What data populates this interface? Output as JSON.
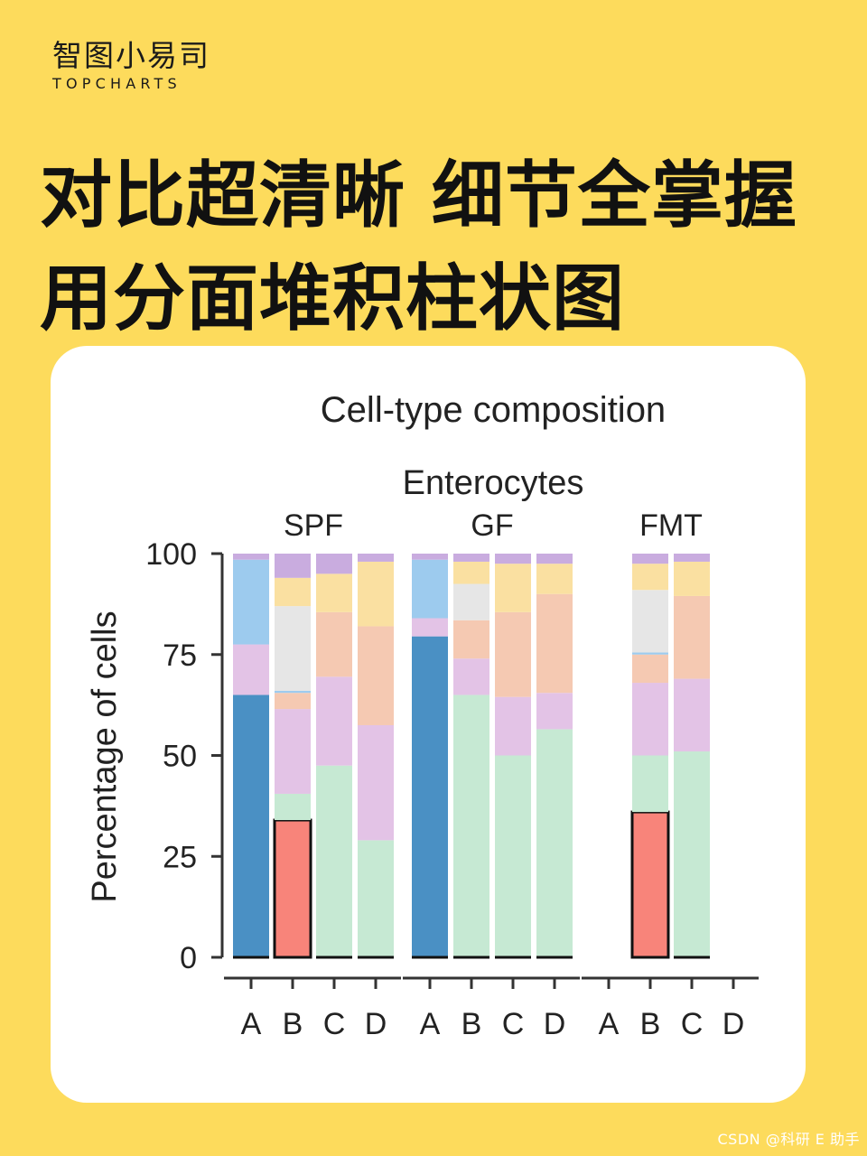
{
  "brand": {
    "name_cn": "智图小易司",
    "name_en": "TOPCHARTS"
  },
  "headline": {
    "line1": "对比超清晰 细节全掌握",
    "line2": "用分面堆积柱状图"
  },
  "watermark": "CSDN @科研 E 助手",
  "colors": {
    "page_bg": "#FDDB5C",
    "card_bg": "#FFFFFF",
    "seg_dark_blue": "#4A90C4",
    "seg_light_blue": "#9DCBEE",
    "seg_pink_violet": "#E3C3E6",
    "seg_light_gray": "#E6E6E6",
    "seg_peach": "#F5C9B2",
    "seg_gold": "#FAE0A1",
    "seg_purple": "#C9ACDF",
    "seg_mint": "#C6E9D3",
    "seg_red": "#F8847A"
  },
  "chart_data": {
    "type": "bar",
    "stacked": true,
    "title": "Cell-type composition",
    "subtitle": "Enterocytes",
    "ylabel": "Percentage of cells",
    "xlabel": "",
    "ylim": [
      0,
      100
    ],
    "yticks": [
      0,
      25,
      50,
      75,
      100
    ],
    "categories": [
      "A",
      "B",
      "C",
      "D"
    ],
    "facets": [
      {
        "name": "SPF",
        "bars": [
          {
            "category": "A",
            "segments": [
              {
                "color": "seg_dark_blue",
                "value": 65
              },
              {
                "color": "seg_pink_violet",
                "value": 12.5
              },
              {
                "color": "seg_light_blue",
                "value": 21
              },
              {
                "color": "seg_purple",
                "value": 1.5
              }
            ]
          },
          {
            "category": "B",
            "segments": [
              {
                "color": "seg_red",
                "value": 34,
                "outlined": true
              },
              {
                "color": "seg_mint",
                "value": 6.5
              },
              {
                "color": "seg_pink_violet",
                "value": 21
              },
              {
                "color": "seg_peach",
                "value": 4
              },
              {
                "color": "seg_light_blue",
                "value": 0.5
              },
              {
                "color": "seg_light_gray",
                "value": 21
              },
              {
                "color": "seg_gold",
                "value": 7
              },
              {
                "color": "seg_purple",
                "value": 6
              }
            ]
          },
          {
            "category": "C",
            "segments": [
              {
                "color": "seg_mint",
                "value": 47.5
              },
              {
                "color": "seg_pink_violet",
                "value": 22
              },
              {
                "color": "seg_peach",
                "value": 16
              },
              {
                "color": "seg_gold",
                "value": 9.5
              },
              {
                "color": "seg_purple",
                "value": 5
              }
            ]
          },
          {
            "category": "D",
            "segments": [
              {
                "color": "seg_mint",
                "value": 29
              },
              {
                "color": "seg_pink_violet",
                "value": 28.5
              },
              {
                "color": "seg_peach",
                "value": 24.5
              },
              {
                "color": "seg_gold",
                "value": 16
              },
              {
                "color": "seg_purple",
                "value": 2
              }
            ]
          }
        ]
      },
      {
        "name": "GF",
        "bars": [
          {
            "category": "A",
            "segments": [
              {
                "color": "seg_dark_blue",
                "value": 79.5
              },
              {
                "color": "seg_pink_violet",
                "value": 4.5
              },
              {
                "color": "seg_light_blue",
                "value": 14.5
              },
              {
                "color": "seg_purple",
                "value": 1.5
              }
            ]
          },
          {
            "category": "B",
            "segments": [
              {
                "color": "seg_mint",
                "value": 65
              },
              {
                "color": "seg_pink_violet",
                "value": 9
              },
              {
                "color": "seg_peach",
                "value": 9.5
              },
              {
                "color": "seg_light_gray",
                "value": 9
              },
              {
                "color": "seg_gold",
                "value": 5.5
              },
              {
                "color": "seg_purple",
                "value": 2
              }
            ]
          },
          {
            "category": "C",
            "segments": [
              {
                "color": "seg_mint",
                "value": 50
              },
              {
                "color": "seg_pink_violet",
                "value": 14.5
              },
              {
                "color": "seg_peach",
                "value": 21
              },
              {
                "color": "seg_gold",
                "value": 12
              },
              {
                "color": "seg_purple",
                "value": 2.5
              }
            ]
          },
          {
            "category": "D",
            "segments": [
              {
                "color": "seg_mint",
                "value": 56.5
              },
              {
                "color": "seg_pink_violet",
                "value": 9
              },
              {
                "color": "seg_peach",
                "value": 24.5
              },
              {
                "color": "seg_gold",
                "value": 7.5
              },
              {
                "color": "seg_purple",
                "value": 2.5
              }
            ]
          }
        ]
      },
      {
        "name": "FMT",
        "bars": [
          {
            "category": "A",
            "segments": []
          },
          {
            "category": "B",
            "segments": [
              {
                "color": "seg_red",
                "value": 36,
                "outlined": true
              },
              {
                "color": "seg_mint",
                "value": 14
              },
              {
                "color": "seg_pink_violet",
                "value": 18
              },
              {
                "color": "seg_peach",
                "value": 7
              },
              {
                "color": "seg_light_blue",
                "value": 0.5
              },
              {
                "color": "seg_light_gray",
                "value": 15.5
              },
              {
                "color": "seg_gold",
                "value": 6.5
              },
              {
                "color": "seg_purple",
                "value": 2.5
              }
            ]
          },
          {
            "category": "C",
            "segments": [
              {
                "color": "seg_mint",
                "value": 51
              },
              {
                "color": "seg_pink_violet",
                "value": 18
              },
              {
                "color": "seg_peach",
                "value": 20.5
              },
              {
                "color": "seg_gold",
                "value": 8.5
              },
              {
                "color": "seg_purple",
                "value": 2
              }
            ]
          },
          {
            "category": "D",
            "segments": []
          }
        ]
      }
    ]
  }
}
